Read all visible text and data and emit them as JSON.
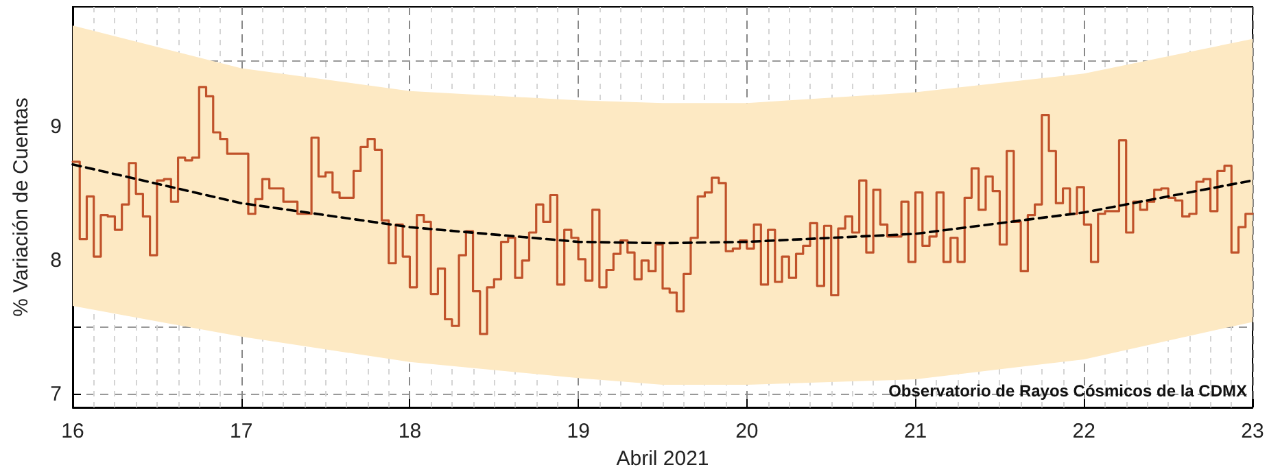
{
  "chart_data": {
    "type": "step",
    "xlabel": "Abril 2021",
    "ylabel": "% Variación de Cuentas",
    "annotations": [
      "Observatorio de Rayos Cósmicos de la CDMX"
    ],
    "xlim": [
      "2021-04-16",
      "2021-04-23"
    ],
    "xticks": [
      {
        "value": "2021-04-16",
        "label": "16"
      },
      {
        "value": "2021-04-17",
        "label": "17"
      },
      {
        "value": "2021-04-18",
        "label": "18"
      },
      {
        "value": "2021-04-19",
        "label": "19"
      },
      {
        "value": "2021-04-20",
        "label": "20"
      },
      {
        "value": "2021-04-21",
        "label": "21"
      },
      {
        "value": "2021-04-22",
        "label": "22"
      },
      {
        "value": "2021-04-23",
        "label": "23"
      },
      {
        "value": "2021-04-16T03:00",
        "label": null
      },
      {
        "value": "2021-04-16T06:00",
        "label": null
      },
      {
        "value": "2021-04-16T09:00",
        "label": null
      },
      {
        "value": "2021-04-16T12:00",
        "label": null
      },
      {
        "value": "2021-04-16T15:00",
        "label": null
      },
      {
        "value": "2021-04-16T18:00",
        "label": null
      },
      {
        "value": "2021-04-16T21:00",
        "label": null
      },
      {
        "value": "2021-04-17T03:00",
        "label": null
      },
      {
        "value": "2021-04-17T06:00",
        "label": null
      },
      {
        "value": "2021-04-17T09:00",
        "label": null
      },
      {
        "value": "2021-04-17T12:00",
        "label": null
      },
      {
        "value": "2021-04-17T15:00",
        "label": null
      },
      {
        "value": "2021-04-17T18:00",
        "label": null
      },
      {
        "value": "2021-04-17T21:00",
        "label": null
      },
      {
        "value": "2021-04-18T03:00",
        "label": null
      },
      {
        "value": "2021-04-18T06:00",
        "label": null
      },
      {
        "value": "2021-04-18T09:00",
        "label": null
      },
      {
        "value": "2021-04-18T12:00",
        "label": null
      },
      {
        "value": "2021-04-18T15:00",
        "label": null
      },
      {
        "value": "2021-04-18T18:00",
        "label": null
      },
      {
        "value": "2021-04-18T21:00",
        "label": null
      },
      {
        "value": "2021-04-19T03:00",
        "label": null
      },
      {
        "value": "2021-04-19T06:00",
        "label": null
      },
      {
        "value": "2021-04-19T09:00",
        "label": null
      },
      {
        "value": "2021-04-19T12:00",
        "label": null
      },
      {
        "value": "2021-04-19T15:00",
        "label": null
      },
      {
        "value": "2021-04-19T18:00",
        "label": null
      },
      {
        "value": "2021-04-19T21:00",
        "label": null
      },
      {
        "value": "2021-04-20T03:00",
        "label": null
      },
      {
        "value": "2021-04-20T06:00",
        "label": null
      },
      {
        "value": "2021-04-20T09:00",
        "label": null
      },
      {
        "value": "2021-04-20T12:00",
        "label": null
      },
      {
        "value": "2021-04-20T15:00",
        "label": null
      },
      {
        "value": "2021-04-20T18:00",
        "label": null
      },
      {
        "value": "2021-04-20T21:00",
        "label": null
      },
      {
        "value": "2021-04-21T03:00",
        "label": null
      },
      {
        "value": "2021-04-21T06:00",
        "label": null
      },
      {
        "value": "2021-04-21T09:00",
        "label": null
      },
      {
        "value": "2021-04-21T12:00",
        "label": null
      },
      {
        "value": "2021-04-21T15:00",
        "label": null
      },
      {
        "value": "2021-04-21T18:00",
        "label": null
      },
      {
        "value": "2021-04-21T21:00",
        "label": null
      },
      {
        "value": "2021-04-22T03:00",
        "label": null
      },
      {
        "value": "2021-04-22T06:00",
        "label": null
      },
      {
        "value": "2021-04-22T09:00",
        "label": null
      },
      {
        "value": "2021-04-22T12:00",
        "label": null
      },
      {
        "value": "2021-04-22T15:00",
        "label": null
      },
      {
        "value": "2021-04-22T18:00",
        "label": null
      },
      {
        "value": "2021-04-22T21:00",
        "label": null
      }
    ],
    "ylim": [
      6.9,
      9.9
    ],
    "yticks": [
      7,
      {
        "value": 7.5,
        "label": null
      },
      8,
      {
        "value": 8.5,
        "label": null
      },
      9,
      {
        "value": 9.5,
        "label": null
      }
    ],
    "grid": true,
    "legend": false,
    "marker": "none",
    "series": [
      {
        "color": "#c0522a",
        "line_style": "solid",
        "x": [
          "2021-04-16T00:00",
          "2021-04-16T01:00",
          "2021-04-16T02:00",
          "2021-04-16T03:00",
          "2021-04-16T04:00",
          "2021-04-16T05:00",
          "2021-04-16T06:00",
          "2021-04-16T07:00",
          "2021-04-16T08:00",
          "2021-04-16T09:00",
          "2021-04-16T10:00",
          "2021-04-16T11:00",
          "2021-04-16T12:00",
          "2021-04-16T13:00",
          "2021-04-16T14:00",
          "2021-04-16T15:00",
          "2021-04-16T16:00",
          "2021-04-16T17:00",
          "2021-04-16T18:00",
          "2021-04-16T19:00",
          "2021-04-16T20:00",
          "2021-04-16T21:00",
          "2021-04-16T22:00",
          "2021-04-16T23:00",
          "2021-04-17T00:00",
          "2021-04-17T01:00",
          "2021-04-17T02:00",
          "2021-04-17T03:00",
          "2021-04-17T04:00",
          "2021-04-17T05:00",
          "2021-04-17T06:00",
          "2021-04-17T07:00",
          "2021-04-17T08:00",
          "2021-04-17T09:00",
          "2021-04-17T10:00",
          "2021-04-17T11:00",
          "2021-04-17T12:00",
          "2021-04-17T13:00",
          "2021-04-17T14:00",
          "2021-04-17T15:00",
          "2021-04-17T16:00",
          "2021-04-17T17:00",
          "2021-04-17T18:00",
          "2021-04-17T19:00",
          "2021-04-17T20:00",
          "2021-04-17T21:00",
          "2021-04-17T22:00",
          "2021-04-17T23:00",
          "2021-04-18T00:00",
          "2021-04-18T01:00",
          "2021-04-18T02:00",
          "2021-04-18T03:00",
          "2021-04-18T04:00",
          "2021-04-18T05:00",
          "2021-04-18T06:00",
          "2021-04-18T07:00",
          "2021-04-18T08:00",
          "2021-04-18T09:00",
          "2021-04-18T10:00",
          "2021-04-18T11:00",
          "2021-04-18T12:00",
          "2021-04-18T13:00",
          "2021-04-18T14:00",
          "2021-04-18T15:00",
          "2021-04-18T16:00",
          "2021-04-18T17:00",
          "2021-04-18T18:00",
          "2021-04-18T19:00",
          "2021-04-18T20:00",
          "2021-04-18T21:00",
          "2021-04-18T22:00",
          "2021-04-18T23:00",
          "2021-04-19T00:00",
          "2021-04-19T01:00",
          "2021-04-19T02:00",
          "2021-04-19T03:00",
          "2021-04-19T04:00",
          "2021-04-19T05:00",
          "2021-04-19T06:00",
          "2021-04-19T07:00",
          "2021-04-19T08:00",
          "2021-04-19T09:00",
          "2021-04-19T10:00",
          "2021-04-19T11:00",
          "2021-04-19T12:00",
          "2021-04-19T13:00",
          "2021-04-19T14:00",
          "2021-04-19T15:00",
          "2021-04-19T16:00",
          "2021-04-19T17:00",
          "2021-04-19T18:00",
          "2021-04-19T19:00",
          "2021-04-19T20:00",
          "2021-04-19T21:00",
          "2021-04-19T22:00",
          "2021-04-19T23:00",
          "2021-04-20T00:00",
          "2021-04-20T01:00",
          "2021-04-20T02:00",
          "2021-04-20T03:00",
          "2021-04-20T04:00",
          "2021-04-20T05:00",
          "2021-04-20T06:00",
          "2021-04-20T07:00",
          "2021-04-20T08:00",
          "2021-04-20T09:00",
          "2021-04-20T10:00",
          "2021-04-20T11:00",
          "2021-04-20T12:00",
          "2021-04-20T13:00",
          "2021-04-20T14:00",
          "2021-04-20T15:00",
          "2021-04-20T16:00",
          "2021-04-20T17:00",
          "2021-04-20T18:00",
          "2021-04-20T19:00",
          "2021-04-20T20:00",
          "2021-04-20T21:00",
          "2021-04-20T22:00",
          "2021-04-20T23:00",
          "2021-04-21T00:00",
          "2021-04-21T01:00",
          "2021-04-21T02:00",
          "2021-04-21T03:00",
          "2021-04-21T04:00",
          "2021-04-21T05:00",
          "2021-04-21T06:00",
          "2021-04-21T07:00",
          "2021-04-21T08:00",
          "2021-04-21T09:00",
          "2021-04-21T10:00",
          "2021-04-21T11:00",
          "2021-04-21T12:00",
          "2021-04-21T13:00",
          "2021-04-21T14:00",
          "2021-04-21T15:00",
          "2021-04-21T16:00",
          "2021-04-21T17:00",
          "2021-04-21T18:00",
          "2021-04-21T19:00",
          "2021-04-21T20:00",
          "2021-04-21T21:00",
          "2021-04-21T22:00",
          "2021-04-21T23:00",
          "2021-04-22T00:00",
          "2021-04-22T01:00",
          "2021-04-22T02:00",
          "2021-04-22T03:00",
          "2021-04-22T04:00",
          "2021-04-22T05:00",
          "2021-04-22T06:00",
          "2021-04-22T07:00",
          "2021-04-22T08:00",
          "2021-04-22T09:00",
          "2021-04-22T10:00",
          "2021-04-22T11:00",
          "2021-04-22T12:00",
          "2021-04-22T13:00",
          "2021-04-22T14:00",
          "2021-04-22T15:00",
          "2021-04-22T16:00",
          "2021-04-22T17:00",
          "2021-04-22T18:00",
          "2021-04-22T19:00",
          "2021-04-22T20:00",
          "2021-04-22T21:00",
          "2021-04-22T22:00",
          "2021-04-22T23:00",
          "2021-04-23T00:00"
        ],
        "values": [
          8.74,
          8.16,
          8.48,
          8.03,
          8.34,
          8.33,
          8.23,
          8.42,
          8.73,
          8.5,
          8.33,
          8.04,
          8.6,
          8.61,
          8.44,
          8.77,
          8.75,
          8.77,
          9.3,
          9.23,
          8.96,
          8.91,
          8.8,
          8.8,
          8.8,
          8.35,
          8.46,
          8.61,
          8.54,
          8.54,
          8.44,
          8.44,
          8.35,
          8.35,
          8.92,
          8.63,
          8.66,
          8.51,
          8.47,
          8.47,
          8.67,
          8.85,
          8.91,
          8.83,
          8.3,
          7.98,
          8.27,
          8.03,
          7.8,
          8.34,
          8.29,
          7.75,
          7.94,
          7.56,
          7.51,
          8.04,
          8.22,
          7.77,
          7.45,
          7.8,
          7.86,
          8.14,
          8.17,
          7.87,
          8.0,
          8.21,
          8.42,
          8.29,
          8.49,
          7.82,
          8.23,
          8.17,
          8.01,
          7.85,
          8.38,
          7.8,
          7.93,
          8.05,
          8.15,
          8.06,
          7.86,
          8.0,
          7.92,
          8.12,
          7.79,
          7.76,
          7.62,
          7.9,
          8.17,
          8.48,
          8.51,
          8.62,
          8.58,
          8.07,
          8.09,
          8.15,
          8.09,
          8.27,
          7.82,
          8.23,
          7.84,
          8.03,
          7.87,
          8.05,
          8.11,
          8.28,
          7.81,
          8.26,
          7.74,
          8.24,
          8.33,
          8.21,
          8.6,
          8.06,
          8.53,
          8.27,
          8.18,
          8.18,
          8.44,
          7.99,
          8.51,
          8.11,
          8.18,
          8.51,
          7.99,
          8.17,
          7.99,
          8.47,
          8.69,
          8.38,
          8.63,
          8.52,
          8.12,
          8.82,
          8.29,
          7.92,
          8.34,
          8.42,
          9.09,
          8.82,
          8.43,
          8.54,
          8.35,
          8.55,
          8.27,
          7.99,
          8.35,
          8.37,
          8.37,
          8.9,
          8.21,
          8.44,
          8.38,
          8.44,
          8.53,
          8.54,
          8.47,
          8.45,
          8.33,
          8.35,
          8.59,
          8.61,
          8.37,
          8.67,
          8.71,
          8.06,
          8.25,
          8.35,
          8.35
        ]
      },
      {
        "type": "line",
        "color": "#000000",
        "line_style": "dashed",
        "x": [
          "2021-04-16",
          "2021-04-17",
          "2021-04-18",
          "2021-04-19",
          "2021-04-19T12:00",
          "2021-04-20",
          "2021-04-21",
          "2021-04-22",
          "2021-04-23"
        ],
        "values": [
          8.72,
          8.43,
          8.25,
          8.14,
          8.13,
          8.14,
          8.2,
          8.36,
          8.6
        ],
        "lower": [
          7.66,
          7.43,
          7.24,
          7.12,
          7.07,
          7.07,
          7.11,
          7.26,
          7.54
        ],
        "upper": [
          9.76,
          9.44,
          9.27,
          9.2,
          9.18,
          9.18,
          9.26,
          9.4,
          9.66
        ]
      }
    ]
  }
}
